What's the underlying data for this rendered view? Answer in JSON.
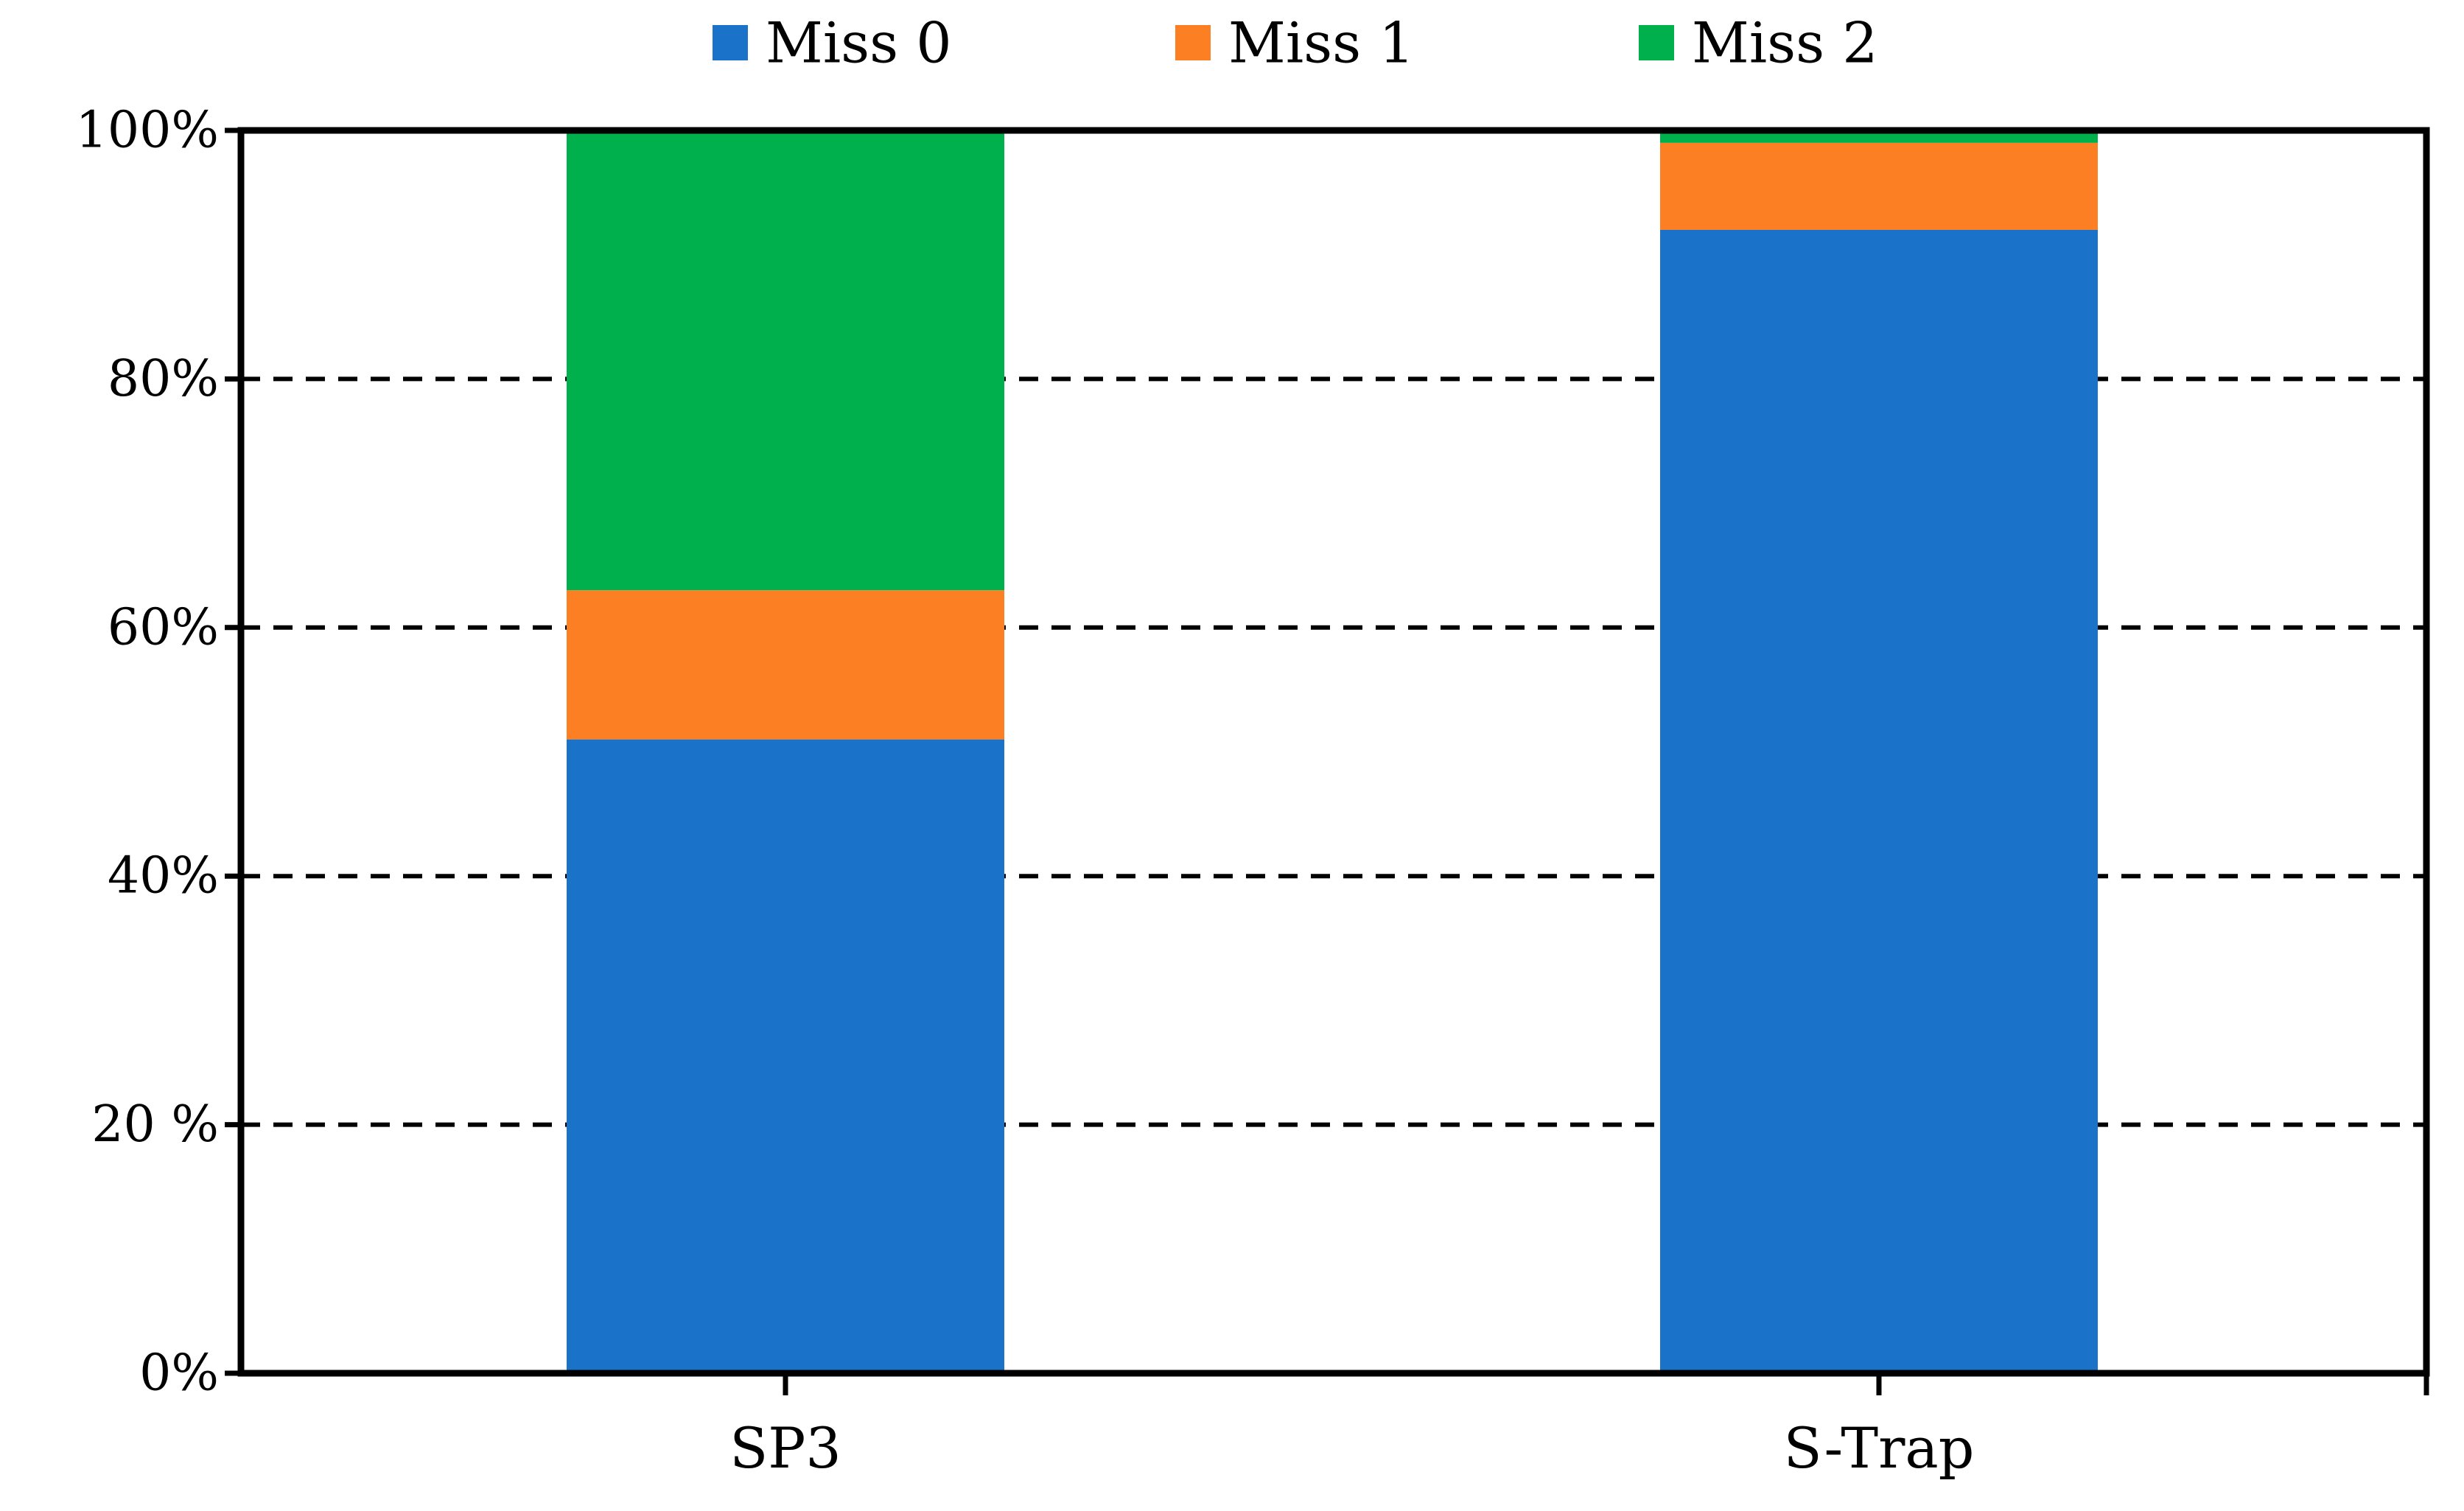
{
  "chart_data": {
    "type": "bar",
    "stacked": true,
    "percent": true,
    "title": "",
    "xlabel": "",
    "ylabel": "",
    "ylim": [
      0,
      100
    ],
    "yticks": [
      0,
      20,
      40,
      60,
      80,
      100
    ],
    "ytick_labels": [
      "0%",
      "20 %",
      "40%",
      "60%",
      "80%",
      "100%"
    ],
    "grid": "horizontal dashed",
    "legend_position": "top-center",
    "categories": [
      "SP3",
      "S-Trap"
    ],
    "series": [
      {
        "name": "Miss 0",
        "color": "#1a73c8",
        "values": [
          51,
          92
        ]
      },
      {
        "name": "Miss 1",
        "color": "#fd7f23",
        "values": [
          12,
          7
        ]
      },
      {
        "name": "Miss 2",
        "color": "#00b04d",
        "values": [
          37,
          1
        ]
      }
    ]
  }
}
